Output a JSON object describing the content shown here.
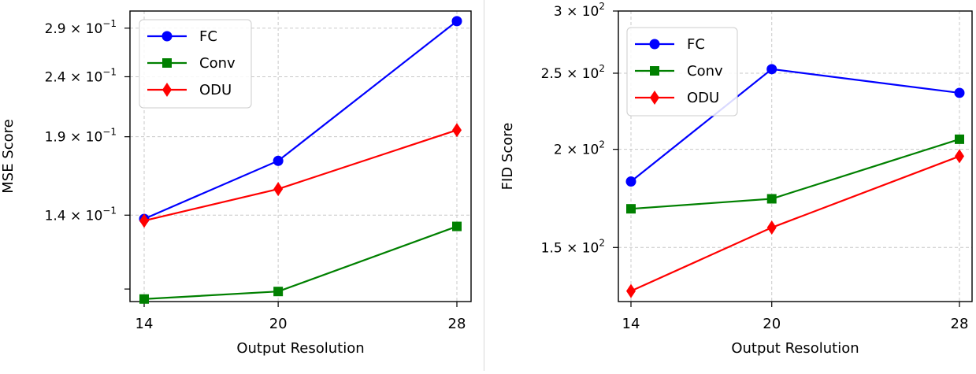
{
  "chart_data": [
    {
      "type": "line",
      "xlabel": "Output Resolution",
      "ylabel": "MSE Score",
      "x": [
        14,
        20,
        28
      ],
      "yscale": "log",
      "ylim": [
        0.1,
        0.31
      ],
      "yticks": [
        {
          "value": 0.29,
          "mantissa": "2.9",
          "exp": "−1"
        },
        {
          "value": 0.24,
          "mantissa": "2.4",
          "exp": "−1"
        },
        {
          "value": 0.19,
          "mantissa": "1.9",
          "exp": "−1"
        },
        {
          "value": 0.14,
          "mantissa": "1.4",
          "exp": "−1"
        },
        {
          "value": 0.105,
          "mantissa": "",
          "exp": ""
        }
      ],
      "grid": true,
      "legend_position": "top-left",
      "series": [
        {
          "name": "FC",
          "color": "#0000ff",
          "marker": "circle",
          "values": [
            0.138,
            0.173,
            0.298
          ]
        },
        {
          "name": "Conv",
          "color": "#008000",
          "marker": "square",
          "values": [
            0.101,
            0.104,
            0.134
          ]
        },
        {
          "name": "ODU",
          "color": "#ff0000",
          "marker": "diamond",
          "values": [
            0.137,
            0.155,
            0.195
          ]
        }
      ]
    },
    {
      "type": "line",
      "xlabel": "Output Resolution",
      "ylabel": "FID Score",
      "x": [
        14,
        20,
        28
      ],
      "yscale": "log",
      "ylim": [
        128,
        300
      ],
      "yticks": [
        {
          "value": 300,
          "mantissa": "3",
          "exp": "2"
        },
        {
          "value": 250,
          "mantissa": "2.5",
          "exp": "2"
        },
        {
          "value": 200,
          "mantissa": "2",
          "exp": "2"
        },
        {
          "value": 150,
          "mantissa": "1.5",
          "exp": "2"
        }
      ],
      "grid": true,
      "legend_position": "top-left",
      "series": [
        {
          "name": "FC",
          "color": "#0000ff",
          "marker": "circle",
          "values": [
            182,
            253,
            236
          ]
        },
        {
          "name": "Conv",
          "color": "#008000",
          "marker": "square",
          "values": [
            168,
            173,
            206
          ]
        },
        {
          "name": "ODU",
          "color": "#ff0000",
          "marker": "diamond",
          "values": [
            132,
            159,
            196
          ]
        }
      ]
    }
  ]
}
